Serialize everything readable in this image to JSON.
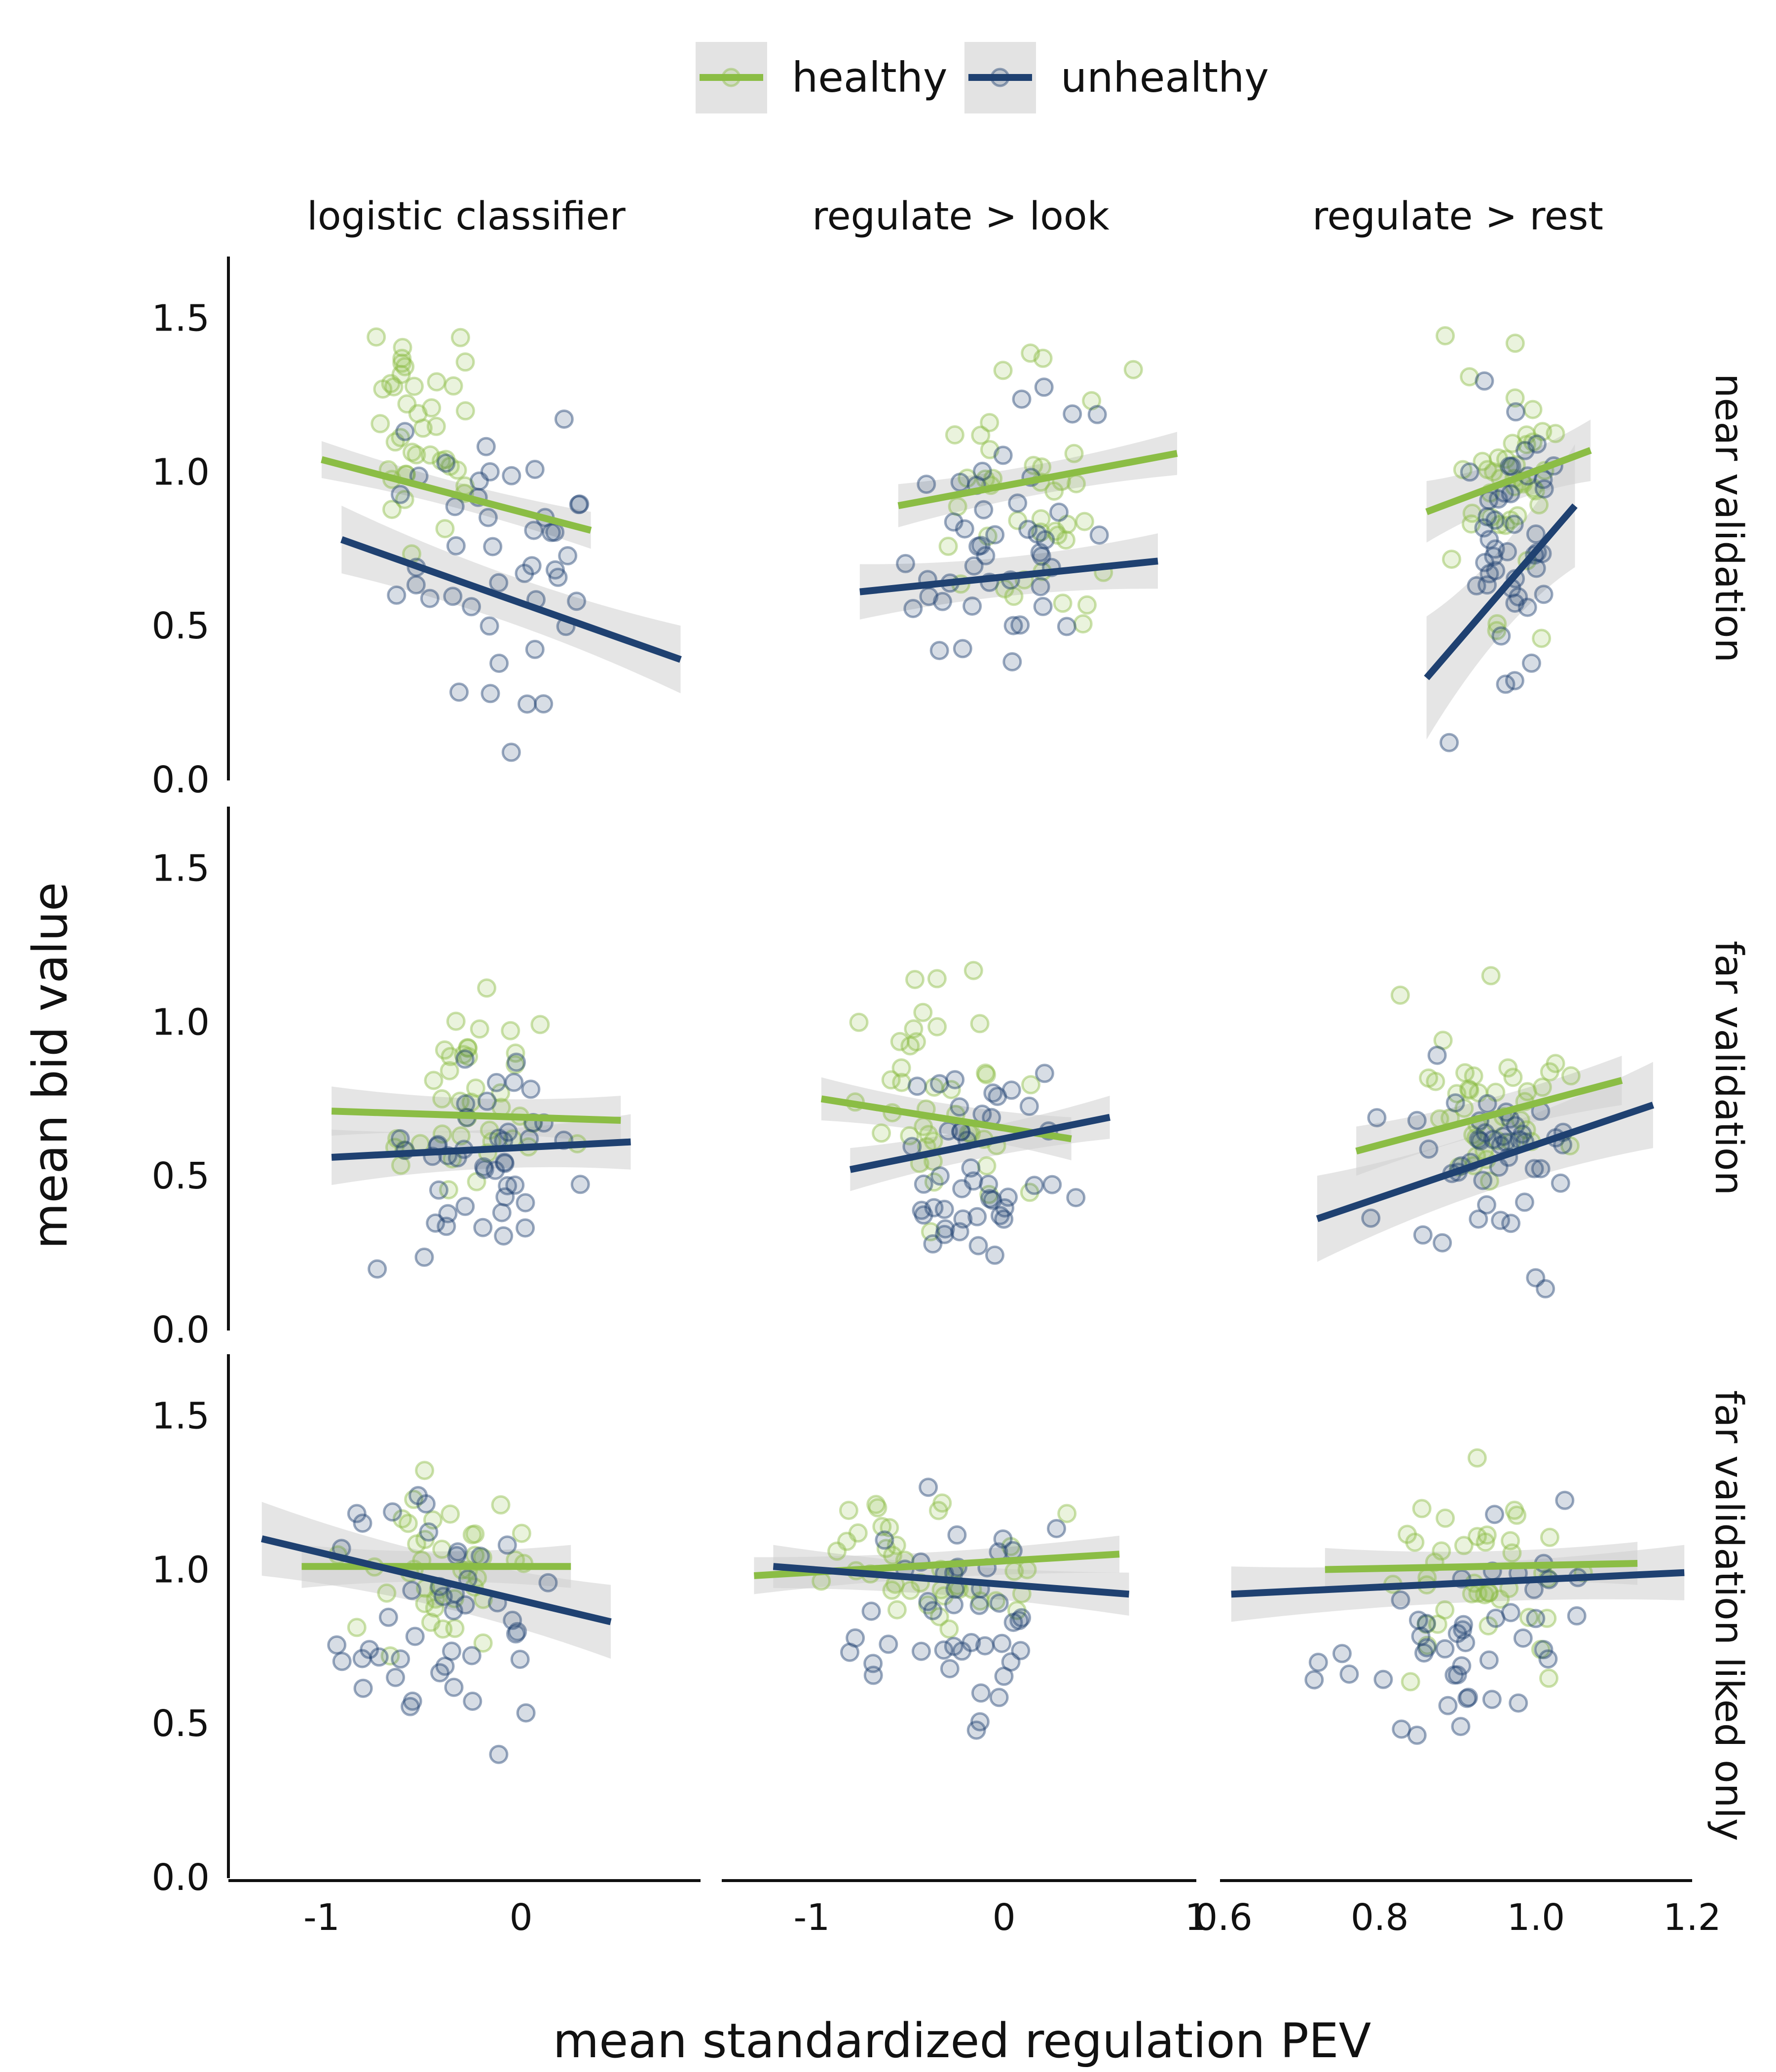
{
  "colors": {
    "healthy": "#8bbd45",
    "unhealthy": "#1f4171",
    "band": "#d0d0d0",
    "axis": "#111111"
  },
  "legend": {
    "position": "top",
    "entries": [
      {
        "key": "healthy",
        "label": "healthy"
      },
      {
        "key": "unhealthy",
        "label": "unhealthy"
      }
    ]
  },
  "chart_data": {
    "type": "scatter",
    "xlabel": "mean standardized regulation PEV",
    "ylabel": "mean bid value",
    "ylim": [
      0,
      1.7
    ],
    "y_ticks": [
      "0.0",
      "0.5",
      "1.0",
      "1.5"
    ],
    "grid": false,
    "columns": [
      {
        "label": "logistic classifier",
        "xlim": [
          -1.45,
          0.9
        ],
        "ticks": [
          -1,
          0
        ],
        "tick_labels": [
          "-1",
          "0"
        ]
      },
      {
        "label": "regulate > look",
        "xlim": [
          -1.45,
          1.0
        ],
        "ticks": [
          -1,
          0,
          1
        ],
        "tick_labels": [
          "-1",
          "0",
          "1"
        ]
      },
      {
        "label": "regulate > rest",
        "xlim": [
          0.6,
          1.2
        ],
        "ticks": [
          0.6,
          0.8,
          1.0,
          1.2
        ],
        "tick_labels": [
          "0.6",
          "0.8",
          "1.0",
          "1.2"
        ]
      }
    ],
    "rows": [
      "near validation",
      "far validation",
      "far validation liked only"
    ],
    "panels": [
      {
        "row": 0,
        "col": 0,
        "seed": 11,
        "healthy": {
          "x": [
            -1.0,
            0.35
          ],
          "y": [
            1.04,
            0.81
          ],
          "band": 0.06,
          "scatter": [
            -1.05,
            0.1,
            0.6,
            1.65,
            40
          ]
        },
        "unhealthy": {
          "x": [
            -0.9,
            0.8
          ],
          "y": [
            0.78,
            0.39
          ],
          "band": 0.11,
          "scatter": [
            -0.95,
            0.85,
            0.05,
            1.5,
            44
          ]
        }
      },
      {
        "row": 0,
        "col": 1,
        "seed": 23,
        "healthy": {
          "x": [
            -0.55,
            0.9
          ],
          "y": [
            0.89,
            1.06
          ],
          "band": 0.07,
          "scatter": [
            -0.7,
            0.95,
            0.25,
            1.62,
            40
          ]
        },
        "unhealthy": {
          "x": [
            -0.75,
            0.8
          ],
          "y": [
            0.61,
            0.71
          ],
          "band": 0.09,
          "scatter": [
            -0.75,
            0.8,
            0.03,
            1.45,
            44
          ]
        }
      },
      {
        "row": 0,
        "col": 2,
        "seed": 37,
        "healthy": {
          "x": [
            0.86,
            1.07
          ],
          "y": [
            0.87,
            1.07
          ],
          "band": 0.1,
          "scatter": [
            0.86,
            1.08,
            0.25,
            1.63,
            40
          ]
        },
        "unhealthy": {
          "x": [
            0.86,
            1.05
          ],
          "y": [
            0.33,
            0.89
          ],
          "band": 0.2,
          "scatter": [
            0.86,
            1.06,
            0.03,
            1.48,
            44
          ]
        }
      },
      {
        "row": 1,
        "col": 0,
        "seed": 41,
        "healthy": {
          "x": [
            -0.95,
            0.5
          ],
          "y": [
            0.71,
            0.68
          ],
          "band": 0.08,
          "scatter": [
            -1.0,
            0.5,
            0.22,
            1.3,
            40
          ]
        },
        "unhealthy": {
          "x": [
            -0.95,
            0.55
          ],
          "y": [
            0.56,
            0.61
          ],
          "band": 0.09,
          "scatter": [
            -0.95,
            0.55,
            0.03,
            1.02,
            44
          ]
        }
      },
      {
        "row": 1,
        "col": 1,
        "seed": 53,
        "healthy": {
          "x": [
            -0.95,
            0.35
          ],
          "y": [
            0.75,
            0.62
          ],
          "band": 0.07,
          "scatter": [
            -1.0,
            0.4,
            0.25,
            1.3,
            40
          ]
        },
        "unhealthy": {
          "x": [
            -0.8,
            0.55
          ],
          "y": [
            0.52,
            0.69
          ],
          "band": 0.07,
          "scatter": [
            -0.85,
            0.55,
            0.03,
            1.0,
            44
          ]
        }
      },
      {
        "row": 1,
        "col": 2,
        "seed": 67,
        "healthy": {
          "x": [
            0.77,
            1.11
          ],
          "y": [
            0.58,
            0.81
          ],
          "band": 0.08,
          "scatter": [
            0.77,
            1.11,
            0.22,
            1.3,
            40
          ]
        },
        "unhealthy": {
          "x": [
            0.72,
            1.15
          ],
          "y": [
            0.36,
            0.73
          ],
          "band": 0.14,
          "scatter": [
            0.72,
            1.15,
            0.03,
            1.0,
            44
          ]
        }
      },
      {
        "row": 2,
        "col": 0,
        "seed": 71,
        "healthy": {
          "x": [
            -1.1,
            0.25
          ],
          "y": [
            1.01,
            1.01
          ],
          "band": 0.07,
          "scatter": [
            -1.15,
            0.3,
            0.55,
            1.42,
            40
          ]
        },
        "unhealthy": {
          "x": [
            -1.3,
            0.45
          ],
          "y": [
            1.1,
            0.83
          ],
          "band": 0.12,
          "scatter": [
            -1.35,
            0.45,
            0.3,
            1.36,
            44
          ]
        }
      },
      {
        "row": 2,
        "col": 1,
        "seed": 83,
        "healthy": {
          "x": [
            -1.3,
            0.6
          ],
          "y": [
            0.98,
            1.05
          ],
          "band": 0.06,
          "scatter": [
            -1.3,
            0.6,
            0.5,
            1.42,
            40
          ]
        },
        "unhealthy": {
          "x": [
            -1.2,
            0.65
          ],
          "y": [
            1.01,
            0.92
          ],
          "band": 0.07,
          "scatter": [
            -1.2,
            0.65,
            0.3,
            1.35,
            44
          ]
        }
      },
      {
        "row": 2,
        "col": 2,
        "seed": 97,
        "healthy": {
          "x": [
            0.73,
            1.13
          ],
          "y": [
            1.0,
            1.02
          ],
          "band": 0.07,
          "scatter": [
            0.72,
            1.13,
            0.52,
            1.42,
            40
          ]
        },
        "unhealthy": {
          "x": [
            0.61,
            1.19
          ],
          "y": [
            0.92,
            0.99
          ],
          "band": 0.09,
          "scatter": [
            0.62,
            1.19,
            0.3,
            1.35,
            44
          ]
        }
      }
    ]
  }
}
